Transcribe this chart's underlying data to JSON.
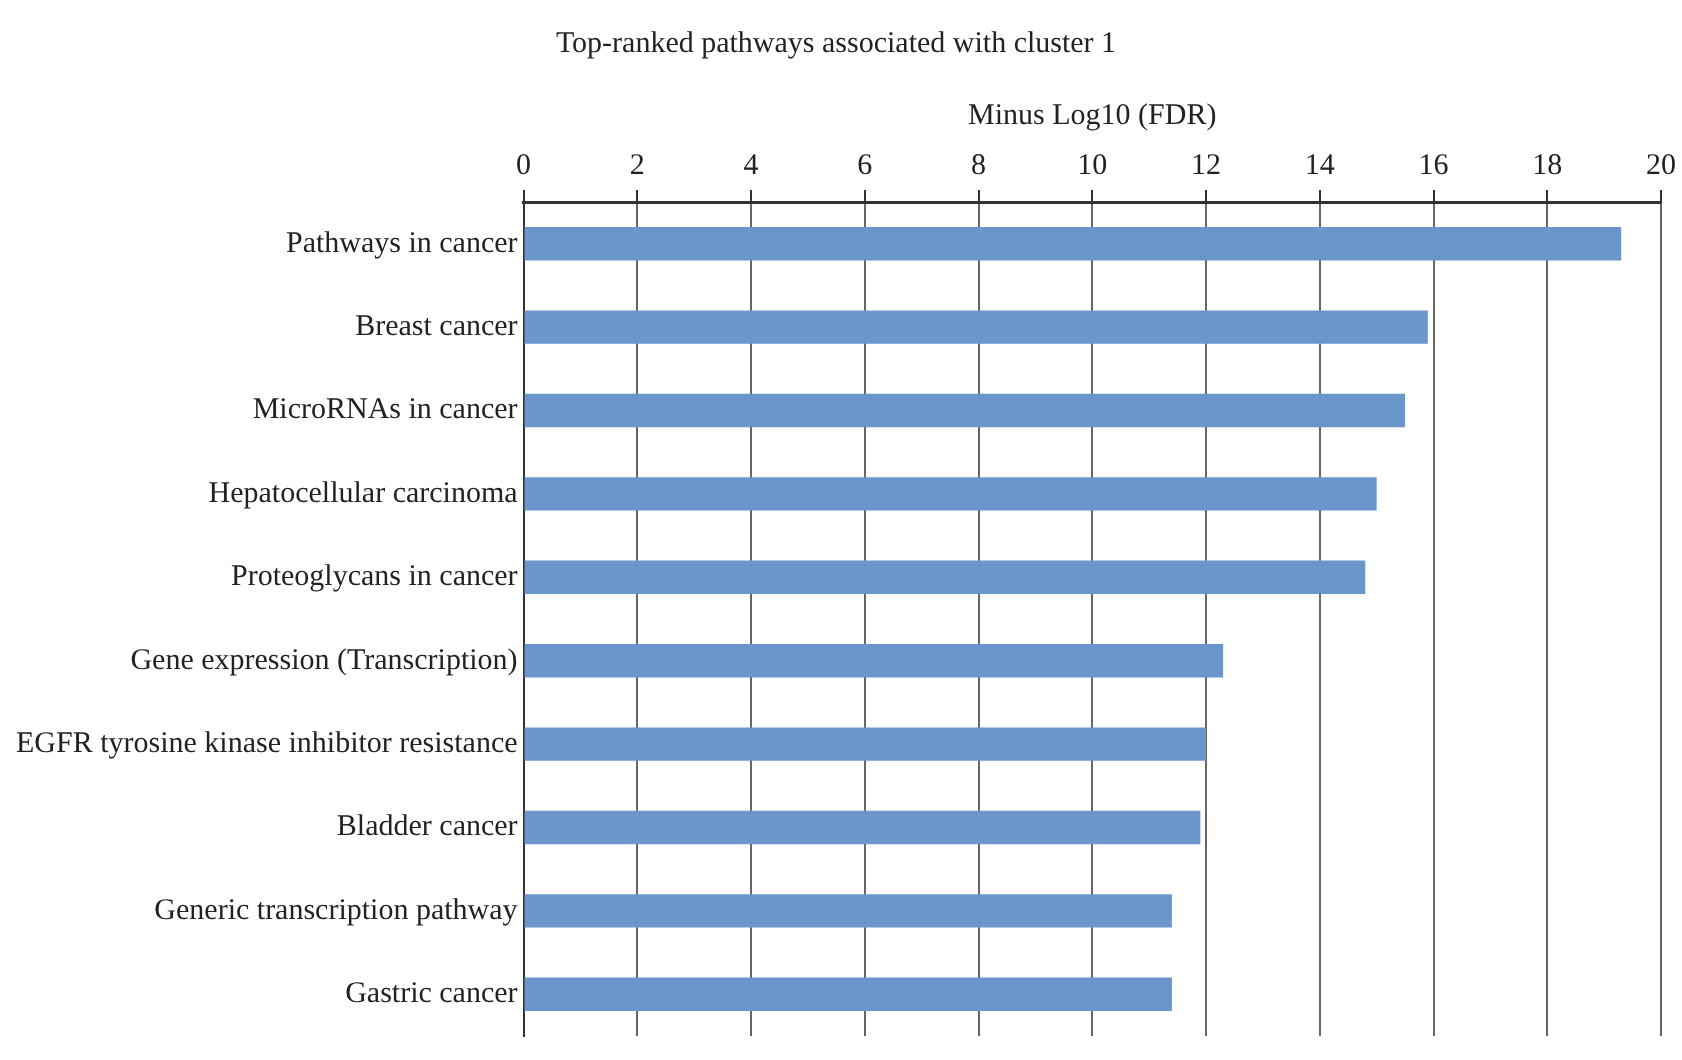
{
  "chart_data": {
    "type": "bar",
    "orientation": "horizontal",
    "title": "Top-ranked pathways associated with cluster 1",
    "xlabel": "Minus Log10 (FDR)",
    "categories": [
      "Pathways in cancer",
      "Breast cancer",
      "MicroRNAs in cancer",
      "Hepatocellular carcinoma",
      "Proteoglycans in cancer",
      "Gene expression (Transcription)",
      "EGFR tyrosine kinase inhibitor resistance",
      "Bladder cancer",
      "Generic transcription pathway",
      "Gastric cancer"
    ],
    "values": [
      19.3,
      15.9,
      15.5,
      15.0,
      14.8,
      12.3,
      12.0,
      11.9,
      11.4,
      11.4
    ],
    "color": "#6a96cc",
    "xlim": [
      0,
      20
    ],
    "xticks": [
      0,
      2,
      4,
      6,
      8,
      10,
      12,
      14,
      16,
      18,
      20
    ],
    "grid": "x",
    "legend": false
  }
}
